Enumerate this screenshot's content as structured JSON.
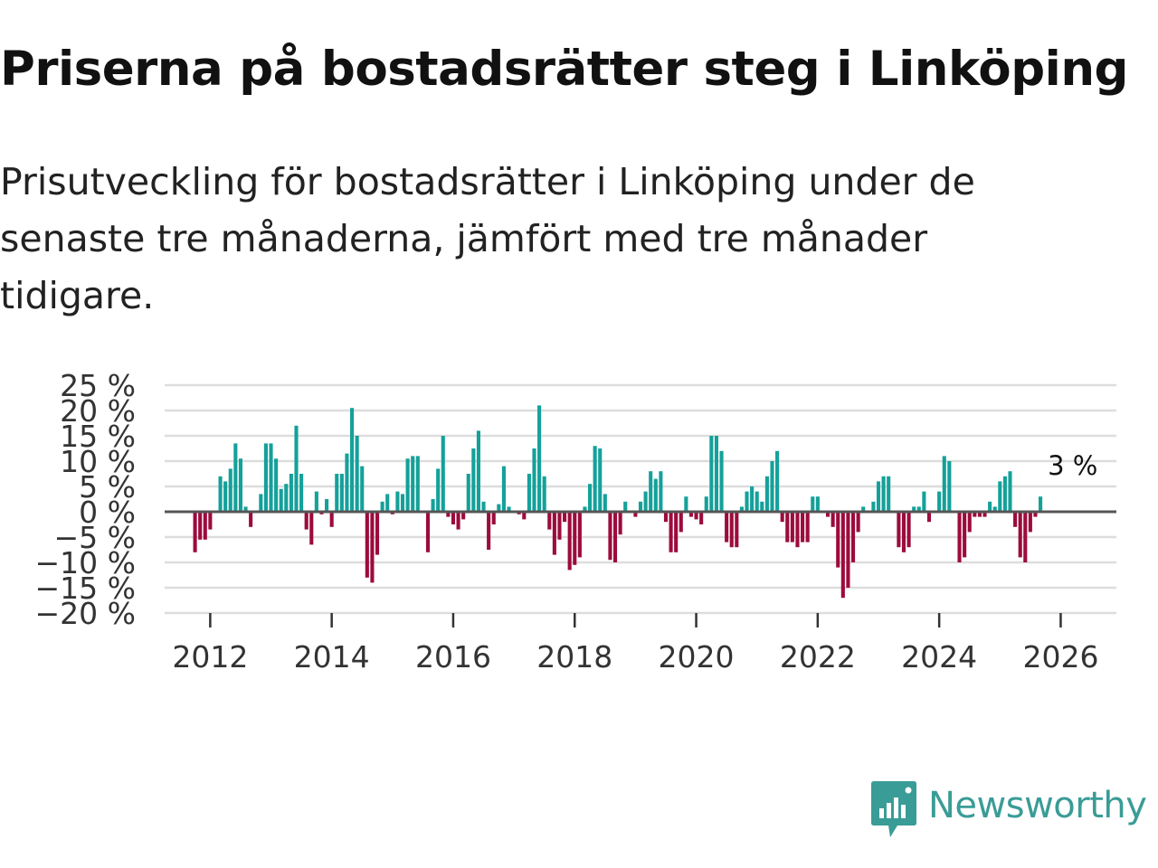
{
  "title": "Priserna på bostadsrätter steg i Linköping",
  "subtitle": "Prisutveckling för bostadsrätter i Linköping under de senaste tre månaderna, jämfört med tre månader tidigare.",
  "logo": {
    "text": "Newsworthy",
    "icon": "newsworthy-logo-icon"
  },
  "colors": {
    "positive": "#14a19a",
    "negative": "#9c0b3d",
    "grid": "#dddddd",
    "zero_line": "#555555",
    "logo": "#3a9c96"
  },
  "chart_data": {
    "type": "bar",
    "title": "Priserna på bostadsrätter steg i Linköping",
    "xlabel": "",
    "ylabel": "",
    "start": "2011-10",
    "interval": "month",
    "ylim": [
      -20,
      25
    ],
    "xlim": [
      "2011-04",
      "2026-12"
    ],
    "y_ticks": [
      25,
      20,
      15,
      10,
      5,
      0,
      -5,
      -10,
      -15,
      -20
    ],
    "y_tick_labels": [
      "25 %",
      "20 %",
      "15 %",
      "10 %",
      "5 %",
      "0 %",
      "−5 %",
      "−10 %",
      "−15 %",
      "−20 %"
    ],
    "x_ticks": [
      "2012",
      "2014",
      "2016",
      "2018",
      "2020",
      "2022",
      "2024",
      "2026"
    ],
    "grid": true,
    "annotation": {
      "text": "3 %",
      "date": "2025-09",
      "value": 3
    },
    "values": [
      -8,
      -5.5,
      -5.5,
      -3.5,
      0,
      7,
      6,
      8.5,
      13.5,
      10.5,
      1,
      -3,
      0,
      3.5,
      13.5,
      13.5,
      10.5,
      4.5,
      5.5,
      7.5,
      17,
      7.5,
      -3.5,
      -6.5,
      4,
      -0.5,
      2.5,
      -3,
      7.5,
      7.5,
      11.5,
      20.5,
      15,
      9,
      -13,
      -14,
      -8.5,
      2,
      3.5,
      -0.5,
      4,
      3.5,
      10.5,
      11,
      11,
      0,
      -8,
      2.5,
      8.5,
      15,
      -1,
      -2.5,
      -3.5,
      -1.5,
      7.5,
      12.5,
      16,
      2,
      -7.5,
      -2.5,
      1.5,
      9,
      1,
      0,
      -0.5,
      -1.5,
      7.5,
      12.5,
      21,
      7,
      -3.5,
      -8.5,
      -5.5,
      -2,
      -11.5,
      -10.5,
      -9,
      1,
      5.5,
      13,
      12.5,
      3.5,
      -9.5,
      -10,
      -4.5,
      2,
      0,
      -1,
      2,
      4,
      8,
      6.5,
      8,
      -2,
      -8,
      -8,
      -4,
      3,
      -1,
      -1.5,
      -2.5,
      3,
      15,
      15,
      12,
      -6,
      -7,
      -7,
      1,
      4,
      5,
      4,
      2,
      7,
      10,
      12,
      -2,
      -6,
      -6,
      -7,
      -6,
      -6,
      3,
      3,
      0,
      -1,
      -3,
      -11,
      -17,
      -15,
      -10,
      -4,
      1,
      0,
      2,
      6,
      7,
      7,
      0,
      -7,
      -8,
      -7,
      1,
      1,
      4,
      -2,
      0,
      4,
      11,
      10,
      0,
      -10,
      -9,
      -4,
      -1,
      -1,
      -1,
      2,
      1,
      6,
      7,
      8,
      -3,
      -9,
      -10,
      -4,
      -1,
      3
    ]
  }
}
